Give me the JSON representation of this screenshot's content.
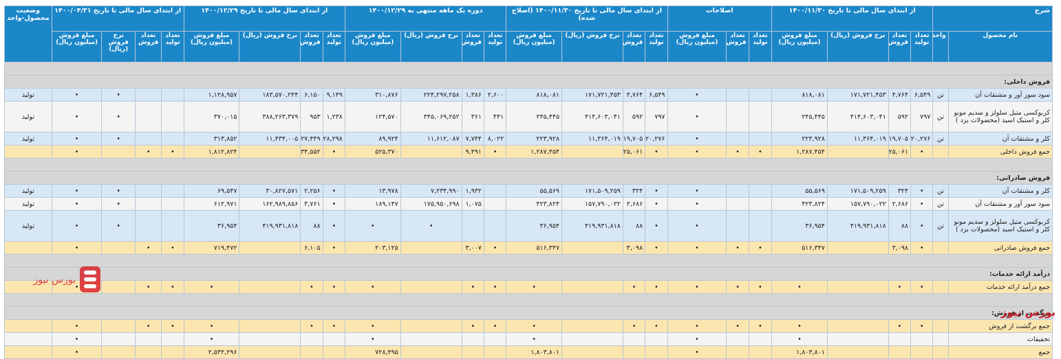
{
  "colors": {
    "header": "#1b87c9",
    "section": "#d6d6d6",
    "row_blue": "#d7e7f6",
    "row_white": "#f4f4f4",
    "row_total": "#fce6b0",
    "brand": "#c0202a"
  },
  "header": {
    "sharh": "شرح",
    "g1": "از ابتدای سال مالی تا تاریخ ۱۴۰۰/۱۱/۳۰",
    "g2": "اصلاحات",
    "g3": "از ابتدای سال مالی تا تاریخ ۱۴۰۰/۱۱/۳۰ (اصلاح شده)",
    "g4": "دوره یک ماهه منتهی به ۱۴۰۰/۱۲/۲۹",
    "g5": "از ابتدای سال مالی تا تاریخ ۱۴۰۰/۱۲/۲۹",
    "g6": "از ابتدای سال مالی تا تاریخ ۱۴۰۰/۰۴/۳۱",
    "status": "وضعیت محصول-واحد",
    "product_name": "نام محصول",
    "unit": "واحد",
    "production_qty": "تعداد تولید",
    "sales_qty": "تعداد فروش",
    "sales_rate": "نرخ فروش (ریال)",
    "sales_amount": "مبلغ فروش (میلیون ریال)",
    "sales_amount_g2": "مبلغ فروش (میلیون ریال)",
    "sales_rate_g6": "نرخ فروش (ریال)",
    "sales_amount_g6": "مبلغ فروش (میلیون ریال)"
  },
  "sections": {
    "domestic": "فروش داخلی:",
    "export": "فروش صادراتی:",
    "services": "درآمد ارائه خدمات:",
    "returns": "برگشت از فروش:"
  },
  "rows": [
    {
      "name": "سود سوز آور و مشتقات آن",
      "unit": "تن",
      "c": [
        "۶,۵۴۹",
        "۴,۷۶۴",
        "۱۷۱,۷۲۱,۴۵۳",
        "۸۱۸,۰۸۱",
        "",
        "",
        "•",
        "۶,۵۴۹",
        "۴,۷۶۴",
        "۱۷۱,۷۲۱,۴۵۳",
        "۸۱۸,۰۸۱",
        "۲,۶۰۰",
        "۱,۳۸۶",
        "۲۲۴,۲۹۷,۲۵۸",
        "۳۱۰,۸۷۶",
        "۹,۱۴۹",
        "۶,۱۵۰",
        "۱۸۳,۵۷۰,۲۴۴",
        "۱,۱۲۸,۹۵۷",
        "",
        "",
        "•",
        "•"
      ],
      "status": "تولید"
    },
    {
      "name": "کربوکسی متیل سلولز و سدیم مونو کلر و استیک اسید (محصولات یزد )",
      "unit": "تن",
      "c": [
        "۷۹۷",
        "۵۹۲",
        "۴۱۴,۶۰۳,۰۴۱",
        "۲۴۵,۴۴۵",
        "",
        "",
        "•",
        "۷۹۷",
        "۵۹۲",
        "۴۱۴,۶۰۳,۰۴۱",
        "۲۴۵,۴۴۵",
        "۴۴۱",
        "۳۶۱",
        "۳۴۵,۰۶۹,۲۵۲",
        "۱۲۴,۵۷۰",
        "۱,۲۳۸",
        "۹۵۳",
        "۳۸۸,۲۶۳,۳۷۹",
        "۳۷۰,۰۱۵",
        "",
        "",
        "•",
        "•"
      ],
      "status": "تولید"
    },
    {
      "name": "کلر و مشتقات آن",
      "unit": "تن",
      "c": [
        "۲۰,۲۷۶",
        "۱۹,۷۰۵",
        "۱۱,۳۶۴,۰۱۹",
        "۲۲۳,۹۲۸",
        "",
        "",
        "•",
        "۲۰,۲۷۶",
        "۱۹,۷۰۵",
        "۱۱,۳۶۴,۰۱۹",
        "۲۲۳,۹۲۸",
        "۸,۰۲۲",
        "۷,۷۴۴",
        "۱۱,۶۱۲,۰۸۷",
        "۸۹,۹۲۴",
        "۲۸,۲۹۸",
        "۲۷,۴۴۹",
        "۱۱,۴۳۴,۰۰۵",
        "۳۱۳,۸۵۲",
        "",
        "",
        "•",
        "•"
      ],
      "status": "تولید"
    },
    {
      "name": "جمع فروش داخلی",
      "unit": "",
      "c": [
        "•",
        "۲۵,۰۶۱",
        "",
        "۱,۲۸۷,۴۵۴",
        "•",
        "•",
        "•",
        "•",
        "۲۵,۰۶۱",
        "",
        "۱,۲۸۷,۴۵۴",
        "•",
        "۹,۴۹۱",
        "",
        "۵۲۵,۳۷۰",
        "•",
        "۳۴,۵۵۲",
        "",
        "۱,۸۱۲,۸۲۴",
        "•",
        "•",
        "",
        "•"
      ],
      "status": ""
    },
    {
      "name": "کلر و مشتقات آن",
      "unit": "تن",
      "c": [
        "•",
        "۳۲۴",
        "۱۷۱,۵۰۹,۲۵۹",
        "۵۵,۵۶۹",
        "",
        "",
        "•",
        "•",
        "۳۲۴",
        "۱۷۱,۵۰۹,۲۵۹",
        "۵۵,۵۶۹",
        "",
        "۱,۹۳۲",
        "۷,۲۳۴,۹۹۰",
        "۱۳,۹۷۸",
        "•",
        "۲,۲۵۶",
        "۳۰,۸۲۷,۵۷۱",
        "۶۹,۵۴۷",
        "",
        "",
        "•",
        "•"
      ],
      "status": "تولید"
    },
    {
      "name": "سود سوز آور و مشتقات آن",
      "unit": "تن",
      "c": [
        "•",
        "۲,۶۸۶",
        "۱۵۷,۷۹۰,۰۲۲",
        "۴۲۳,۸۲۴",
        "",
        "",
        "•",
        "•",
        "۲,۶۸۶",
        "۱۵۷,۷۹۰,۰۲۲",
        "۴۲۳,۸۲۴",
        "",
        "۱,۰۷۵",
        "۱۷۵,۹۵۰,۶۹۸",
        "۱۸۹,۱۴۷",
        "•",
        "۳,۷۶۱",
        "۱۶۲,۹۸۹,۸۵۶",
        "۶۱۲,۹۷۱",
        "",
        "",
        "•",
        "•"
      ],
      "status": "تولید"
    },
    {
      "name": "کربوکسی متیل سلولز و سدیم مونو کلر و استیک اسید (محصولات یزد )",
      "unit": "تن",
      "c": [
        "•",
        "۸۸",
        "۴۱۹,۹۳۱,۸۱۸",
        "۳۶,۹۵۴",
        "",
        "",
        "•",
        "•",
        "۸۸",
        "۴۱۹,۹۳۱,۸۱۸",
        "۳۶,۹۵۴",
        "",
        "",
        "•",
        "•",
        "•",
        "۸۸",
        "۴۱۹,۹۳۱,۸۱۸",
        "۳۶,۹۵۴",
        "",
        "",
        "•",
        "•"
      ],
      "status": "تولید"
    },
    {
      "name": "جمع فروش صادراتی",
      "unit": "",
      "c": [
        "•",
        "۳,۰۹۸",
        "",
        "۵۱۶,۳۴۷",
        "•",
        "•",
        "•",
        "•",
        "۳,۰۹۸",
        "",
        "۵۱۶,۳۴۷",
        "•",
        "۳,۰۰۷",
        "",
        "۲۰۳,۱۲۵",
        "•",
        "۶,۱۰۵",
        "",
        "۷۱۹,۴۷۲",
        "•",
        "•",
        "",
        "•"
      ],
      "status": ""
    },
    {
      "name": "جمع درآمد ارائه خدمات",
      "unit": "",
      "c": [
        "•",
        "•",
        "",
        "•",
        "•",
        "•",
        "•",
        "•",
        "•",
        "",
        "•",
        "•",
        "•",
        "",
        "•",
        "•",
        "•",
        "",
        "•",
        "•",
        "•",
        "",
        "•"
      ],
      "status": ""
    },
    {
      "name": "جمع برگشت از فروش",
      "unit": "",
      "c": [
        "•",
        "•",
        "",
        "•",
        "•",
        "•",
        "•",
        "•",
        "•",
        "",
        "•",
        "•",
        "•",
        "",
        "•",
        "•",
        "•",
        "",
        "•",
        "•",
        "•",
        "",
        "•"
      ],
      "status": ""
    },
    {
      "name": "تخفیفات",
      "unit": "",
      "c": [
        "",
        "",
        "",
        "•",
        "",
        "",
        "•",
        "",
        "",
        "",
        "•",
        "",
        "",
        "",
        "•",
        "",
        "",
        "",
        "•",
        "",
        "",
        "",
        "•"
      ],
      "status": ""
    },
    {
      "name": "جمع",
      "unit": "",
      "c": [
        "",
        "",
        "",
        "۱,۸۰۳,۸۰۱",
        "",
        "",
        "•",
        "",
        "",
        "",
        "۱,۸۰۳,۸۰۱",
        "",
        "",
        "",
        "۷۲۸,۴۹۵",
        "",
        "",
        "",
        "۲,۵۳۲,۲۹۶",
        "",
        "",
        "",
        "•"
      ],
      "status": ""
    }
  ],
  "brand_text": "بورس نیوز",
  "watermark_text": "بورس نیوز"
}
